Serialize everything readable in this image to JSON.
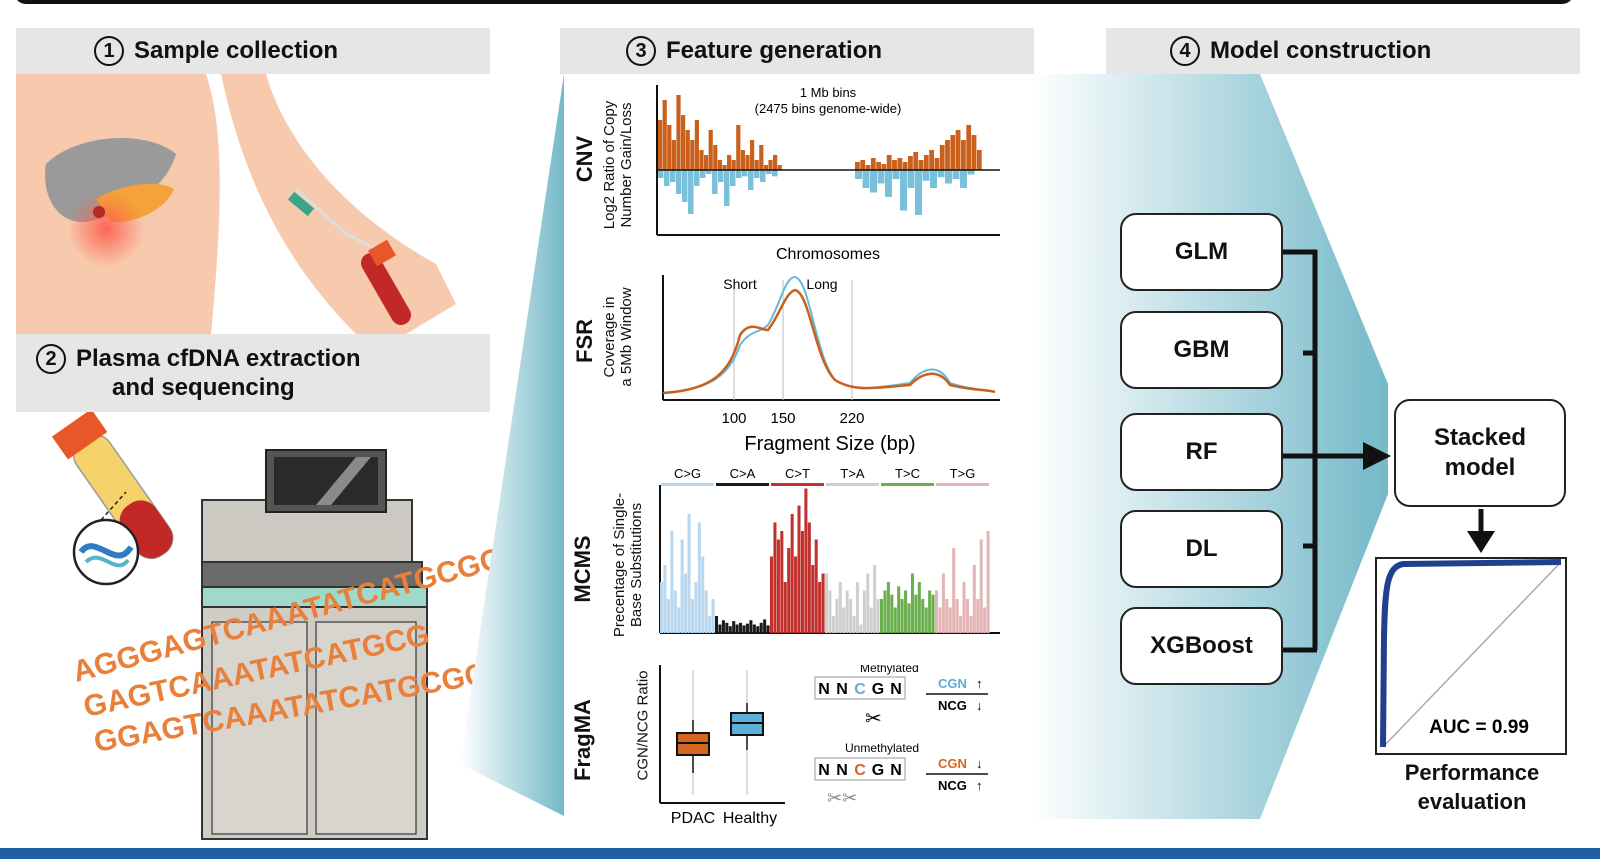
{
  "sections": {
    "s1": {
      "num": "1",
      "title": "Sample collection"
    },
    "s2": {
      "num": "2",
      "title_line1": "Plasma cfDNA extraction",
      "title_line2": "and sequencing"
    },
    "s3": {
      "num": "3",
      "title": "Feature generation"
    },
    "s4": {
      "num": "4",
      "title": "Model construction"
    }
  },
  "dna_lines": [
    "AGGGAGTCAAATATCATGCGCAT",
    "GAGTCAAATATCATGCG",
    "GGAGTCAAATATCATGCGCAT"
  ],
  "features": {
    "cnv": {
      "label": "CNV",
      "ylabel_line1": "Log2 Ratio of Copy",
      "ylabel_line2": "Number Gain/Loss",
      "note_line1": "1 Mb bins",
      "note_line2": "(2475 bins genome-wide)",
      "xlabel": "Chromosomes",
      "gain_color": "#c9601c",
      "loss_color": "#7ac0da"
    },
    "fsr": {
      "label": "FSR",
      "ylabel_line1": "Coverage in",
      "ylabel_line2": "a 5Mb Window",
      "short": "Short",
      "long": "Long",
      "ticks": [
        "100",
        "150",
        "220"
      ],
      "xlabel": "Fragment Size (bp)"
    },
    "mcms": {
      "label": "MCMS",
      "ylabel_line1": "Precentage of Single-",
      "ylabel_line2": "Base Substitutions",
      "categories": [
        "C>G",
        "C>A",
        "C>T",
        "T>A",
        "T>C",
        "T>G"
      ],
      "colors": [
        "#b9d7ee",
        "#1a1a1a",
        "#c0302c",
        "#cfcfcf",
        "#6aae4e",
        "#e3b5b4"
      ]
    },
    "fragma": {
      "label": "FragMA",
      "ylabel": "CGN/NCG Ratio",
      "groups": [
        "PDAC",
        "Healthy"
      ],
      "methylated": "Methylated",
      "unmethylated": "Unmethylated",
      "seq": [
        "N",
        "N",
        "C",
        "G",
        "N"
      ],
      "cgn": "CGN",
      "ncg": "NCG",
      "pdac_color": "#d4661f",
      "healthy_color": "#5aaed8"
    }
  },
  "models": [
    "GLM",
    "GBM",
    "RF",
    "DL",
    "XGBoost"
  ],
  "stacked": {
    "line1": "Stacked",
    "line2": "model"
  },
  "performance": {
    "auc": "AUC = 0.99",
    "line1": "Performance",
    "line2": "evaluation"
  }
}
